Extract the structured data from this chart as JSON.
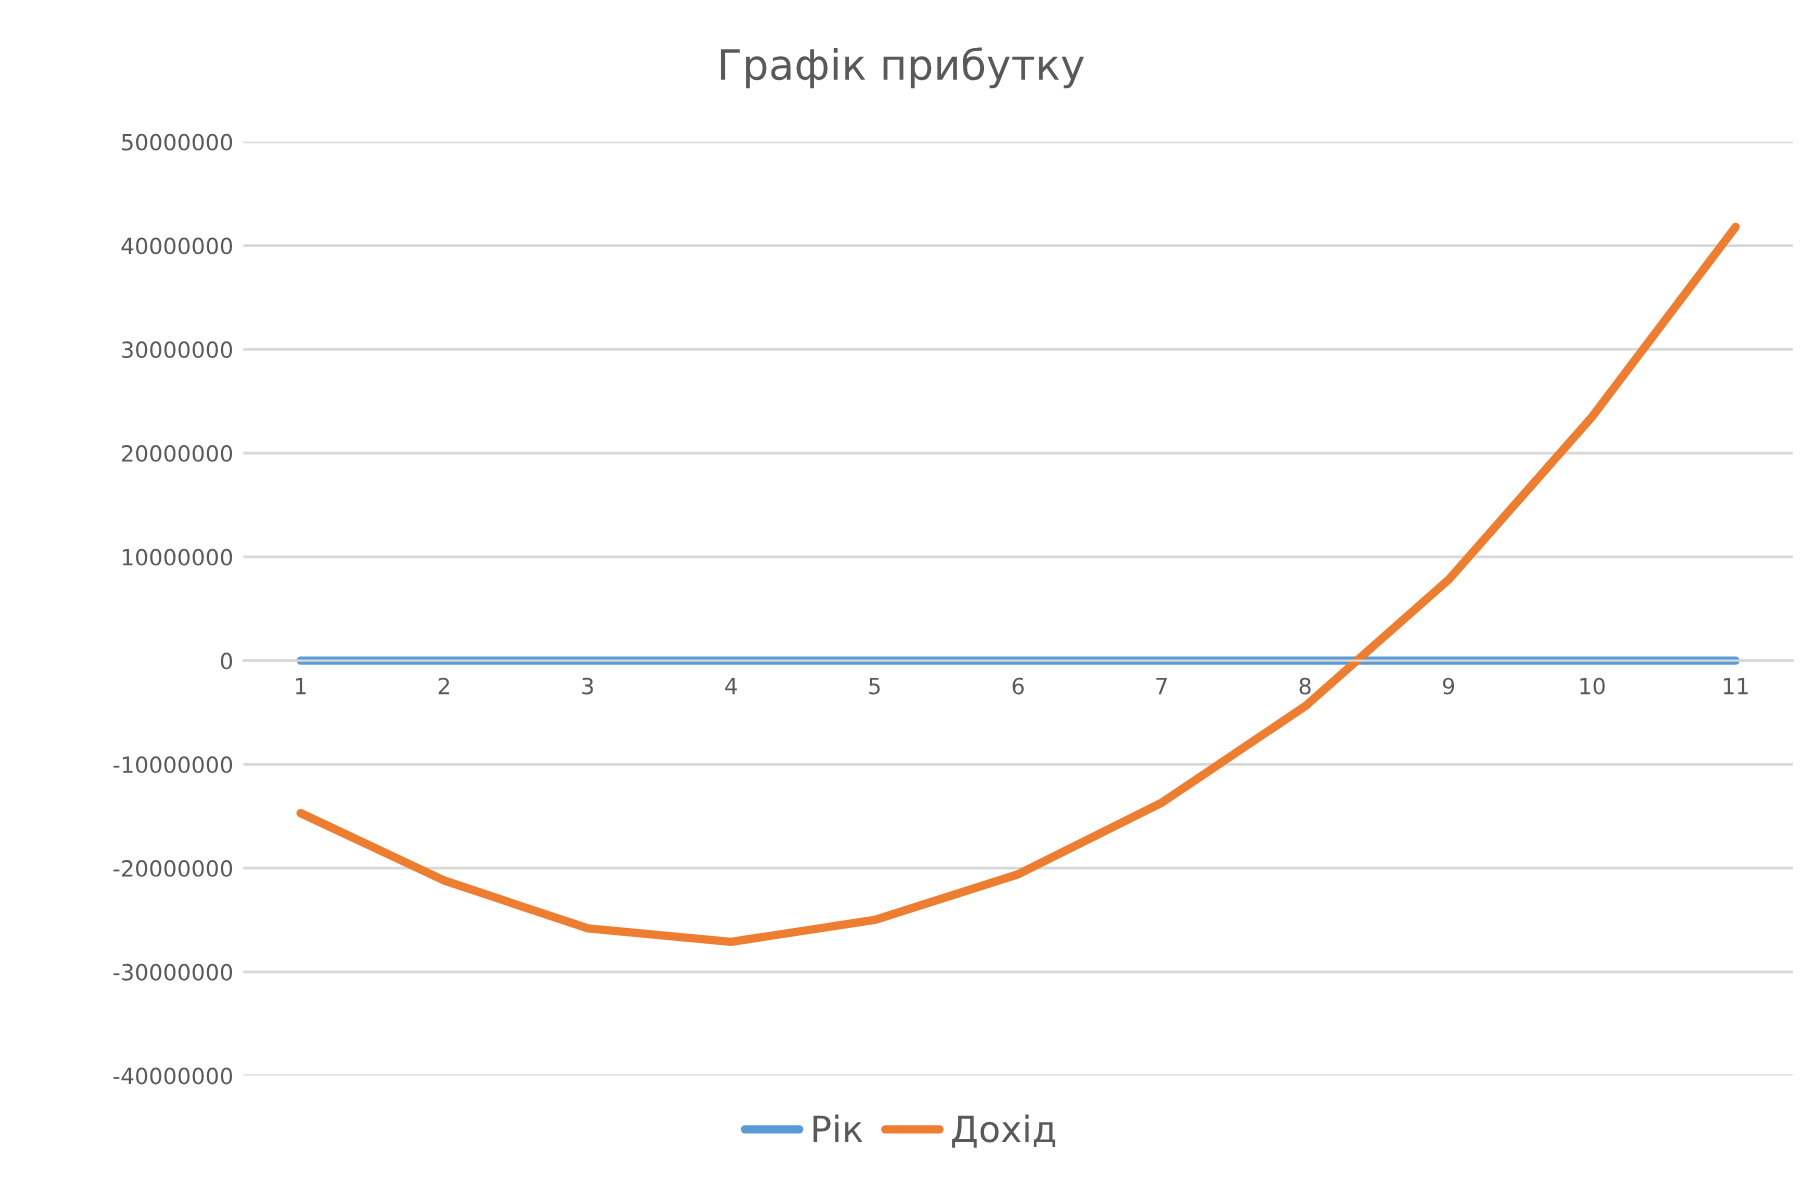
{
  "chart_data": {
    "type": "line",
    "title": "Графік прибутку",
    "categories": [
      "1",
      "2",
      "3",
      "4",
      "5",
      "6",
      "7",
      "8",
      "9",
      "10",
      "11"
    ],
    "series": [
      {
        "name": "Рік",
        "color": "#5b9bd5",
        "values": [
          0,
          0,
          0,
          0,
          0,
          0,
          0,
          0,
          0,
          0,
          0
        ]
      },
      {
        "name": "Дохід",
        "color": "#ed7d31",
        "values": [
          -14700000,
          -21200000,
          -25800000,
          -27100000,
          -25000000,
          -20600000,
          -13700000,
          -4400000,
          7800000,
          23500000,
          41800000
        ]
      }
    ],
    "ylim": [
      -40000000,
      50000000
    ],
    "yticks": [
      -40000000,
      -30000000,
      -20000000,
      -10000000,
      0,
      10000000,
      20000000,
      30000000,
      40000000,
      50000000
    ],
    "grid": "y",
    "legend": "bottom",
    "marker": "none",
    "line_style": "solid"
  }
}
